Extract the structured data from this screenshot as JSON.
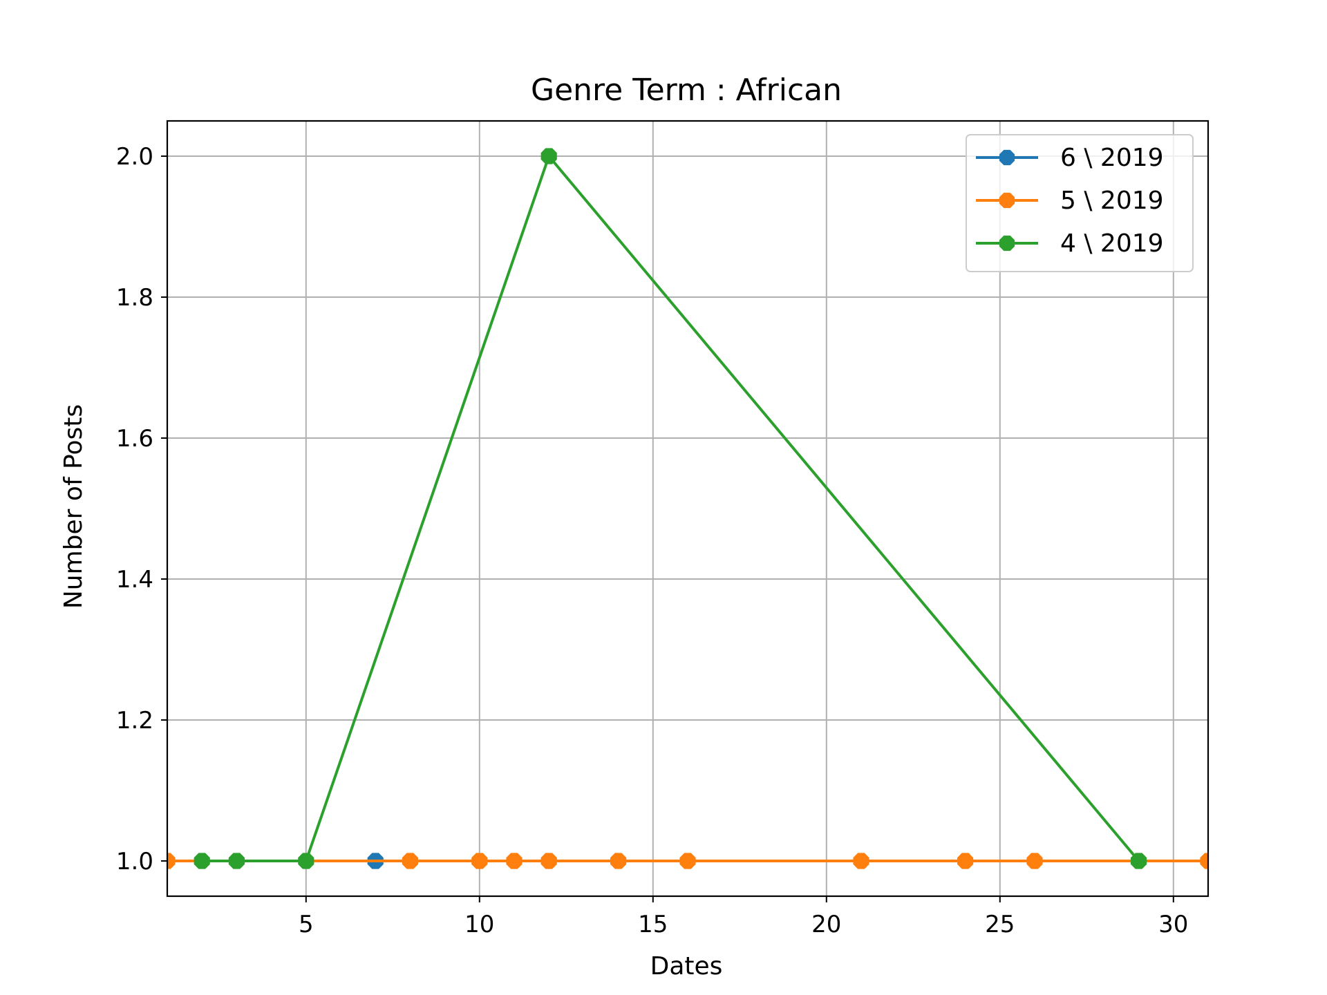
{
  "chart_data": {
    "type": "line",
    "title": "Genre Term : African",
    "xlabel": "Dates",
    "ylabel": "Number of Posts",
    "xlim": [
      1,
      31
    ],
    "ylim": [
      0.95,
      2.05
    ],
    "x_ticks": [
      5,
      10,
      15,
      20,
      25,
      30
    ],
    "x_tick_labels": [
      "5",
      "10",
      "15",
      "20",
      "25",
      "30"
    ],
    "y_ticks": [
      1.0,
      1.2,
      1.4,
      1.6,
      1.8,
      2.0
    ],
    "y_tick_labels": [
      "1.0",
      "1.2",
      "1.4",
      "1.6",
      "1.8",
      "2.0"
    ],
    "grid": true,
    "legend_position": "top-right",
    "marker": "octagon",
    "series": [
      {
        "name": "6 \\ 2019",
        "color": "#1f77b4",
        "x": [
          7
        ],
        "y": [
          1
        ]
      },
      {
        "name": "5 \\ 2019",
        "color": "#ff7f0e",
        "x": [
          1,
          8,
          10,
          11,
          12,
          14,
          16,
          21,
          24,
          26,
          31
        ],
        "y": [
          1,
          1,
          1,
          1,
          1,
          1,
          1,
          1,
          1,
          1,
          1
        ]
      },
      {
        "name": "4 \\ 2019",
        "color": "#2ca02c",
        "x": [
          2,
          3,
          5,
          12,
          29
        ],
        "y": [
          1,
          1,
          1,
          2,
          1
        ]
      }
    ]
  }
}
